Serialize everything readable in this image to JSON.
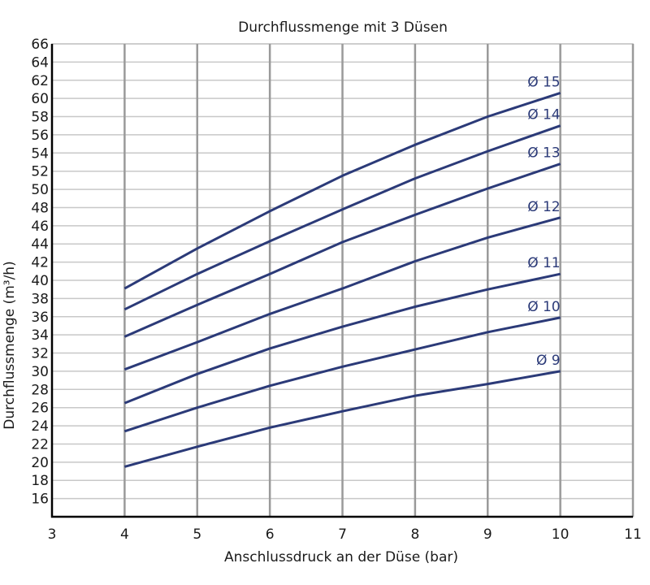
{
  "chart_data": {
    "type": "line",
    "title": "Durchflussmenge mit 3 Düsen",
    "xlabel": "Anschlussdruck an der Düse (bar)",
    "ylabel": "Durchflussmenge (m³/h)",
    "xlim": [
      3,
      11
    ],
    "ylim": [
      14,
      66
    ],
    "x_ticks": [
      3,
      4,
      5,
      6,
      7,
      8,
      9,
      10,
      11
    ],
    "y_ticks": [
      16,
      18,
      20,
      22,
      24,
      26,
      28,
      30,
      32,
      34,
      36,
      38,
      40,
      42,
      44,
      46,
      48,
      50,
      52,
      54,
      56,
      58,
      60,
      62,
      64,
      66
    ],
    "grid": true,
    "legend": "none",
    "line_color": "#2b3a78",
    "grid_color": "#c8c8c8",
    "x": [
      4,
      5,
      6,
      7,
      8,
      9,
      10
    ],
    "series": [
      {
        "name": "Ø 9",
        "values": [
          19.5,
          21.7,
          23.8,
          25.6,
          27.3,
          28.6,
          30.0
        ]
      },
      {
        "name": "Ø 10",
        "values": [
          23.4,
          26.0,
          28.4,
          30.5,
          32.4,
          34.3,
          35.9
        ]
      },
      {
        "name": "Ø 11",
        "values": [
          26.5,
          29.7,
          32.5,
          34.9,
          37.1,
          39.0,
          40.7
        ]
      },
      {
        "name": "Ø 12",
        "values": [
          30.2,
          33.2,
          36.3,
          39.1,
          42.1,
          44.7,
          46.9
        ]
      },
      {
        "name": "Ø 13",
        "values": [
          33.8,
          37.3,
          40.7,
          44.2,
          47.2,
          50.1,
          52.8
        ]
      },
      {
        "name": "Ø 14",
        "values": [
          36.8,
          40.7,
          44.3,
          47.8,
          51.2,
          54.2,
          57.0
        ]
      },
      {
        "name": "Ø 15",
        "values": [
          39.1,
          43.5,
          47.6,
          51.5,
          54.9,
          58.0,
          60.6
        ]
      }
    ]
  }
}
